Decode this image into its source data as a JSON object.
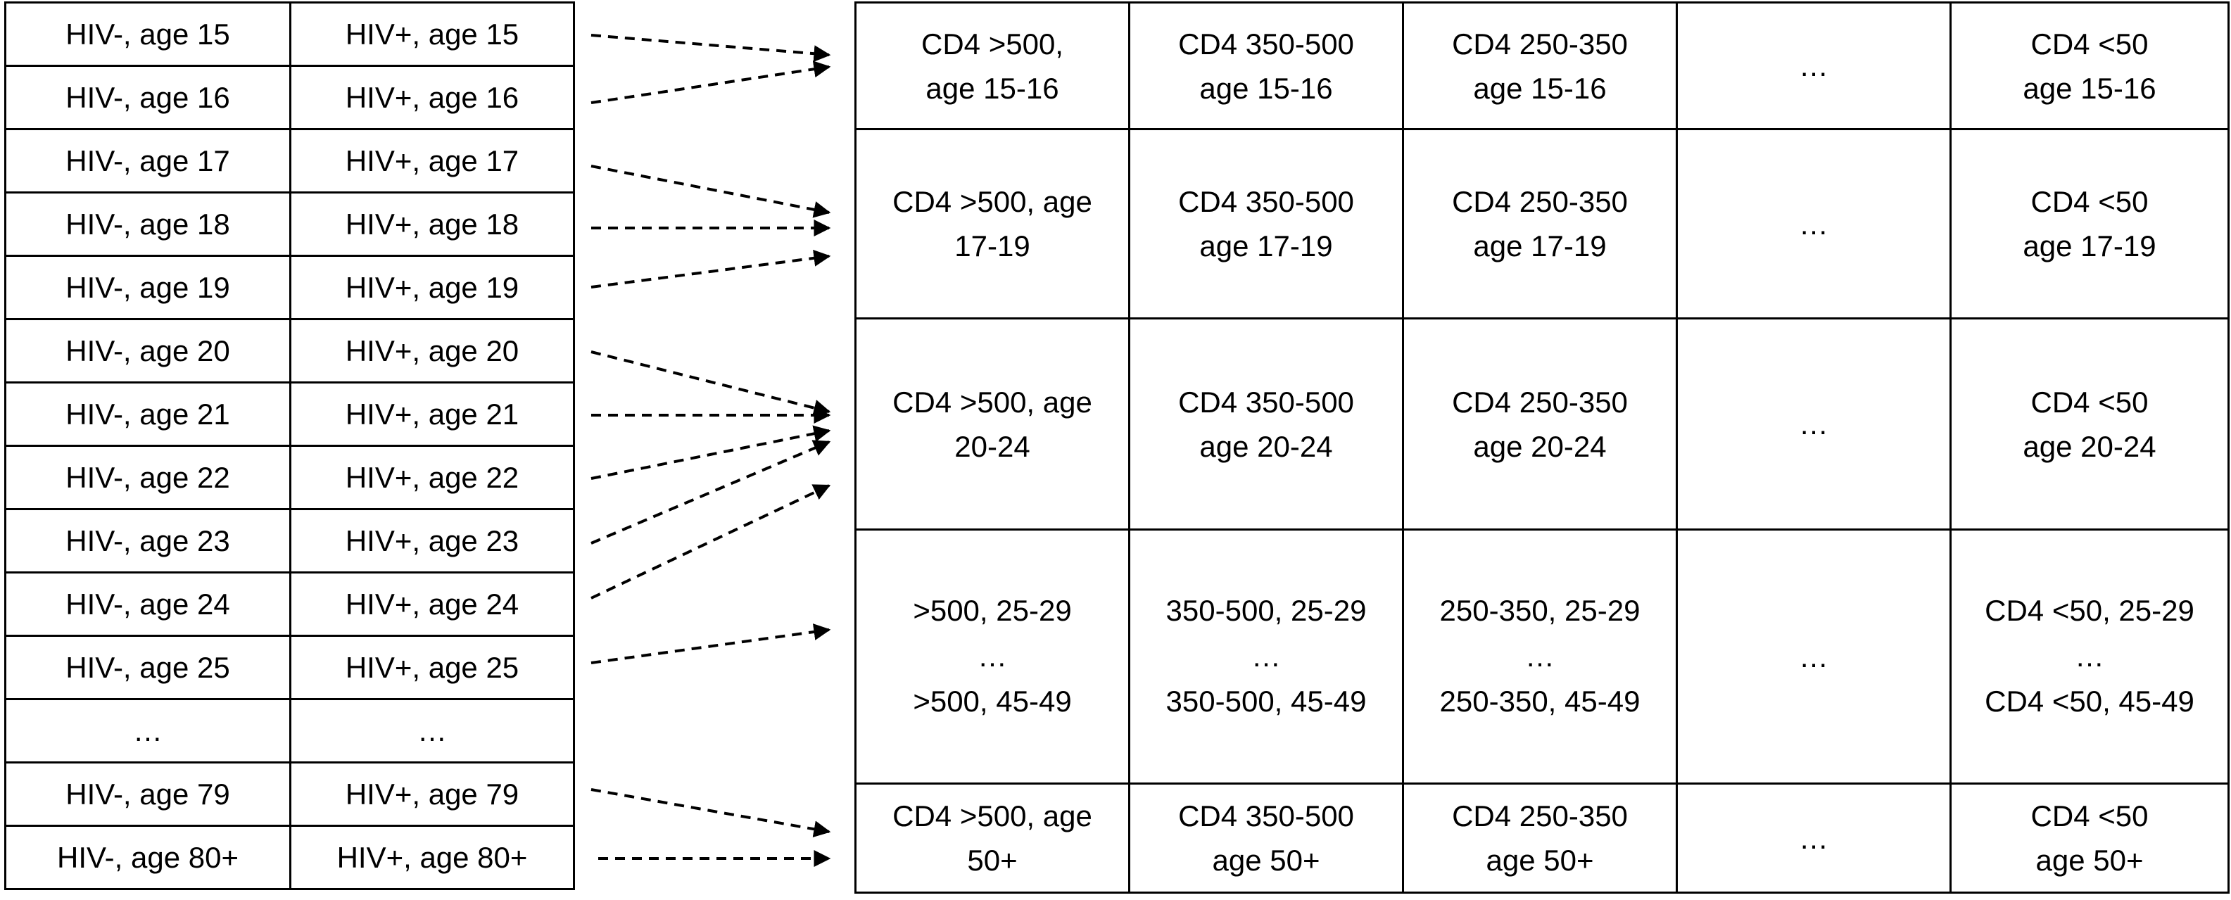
{
  "left_table": {
    "rows": [
      {
        "hiv_neg": "HIV-, age 15",
        "hiv_pos": "HIV+, age 15"
      },
      {
        "hiv_neg": "HIV-, age 16",
        "hiv_pos": "HIV+, age 16"
      },
      {
        "hiv_neg": "HIV-, age 17",
        "hiv_pos": "HIV+, age 17"
      },
      {
        "hiv_neg": "HIV-, age 18",
        "hiv_pos": "HIV+, age 18"
      },
      {
        "hiv_neg": "HIV-, age 19",
        "hiv_pos": "HIV+, age 19"
      },
      {
        "hiv_neg": "HIV-, age 20",
        "hiv_pos": "HIV+, age 20"
      },
      {
        "hiv_neg": "HIV-, age 21",
        "hiv_pos": "HIV+, age 21"
      },
      {
        "hiv_neg": "HIV-, age 22",
        "hiv_pos": "HIV+, age 22"
      },
      {
        "hiv_neg": "HIV-, age 23",
        "hiv_pos": "HIV+, age 23"
      },
      {
        "hiv_neg": "HIV-, age 24",
        "hiv_pos": "HIV+, age 24"
      },
      {
        "hiv_neg": "HIV-, age 25",
        "hiv_pos": "HIV+, age 25"
      },
      {
        "hiv_neg": "…",
        "hiv_pos": "…"
      },
      {
        "hiv_neg": "HIV-, age 79",
        "hiv_pos": "HIV+, age 79"
      },
      {
        "hiv_neg": "HIV-, age 80+",
        "hiv_pos": "HIV+, age 80+"
      }
    ]
  },
  "right_table": {
    "rows": [
      {
        "cells": [
          [
            "CD4 >500,",
            "age 15-16"
          ],
          [
            "CD4 350-500",
            "age 15-16"
          ],
          [
            "CD4 250-350",
            "age 15-16"
          ],
          [
            "…"
          ],
          [
            "CD4 <50",
            "age 15-16"
          ]
        ]
      },
      {
        "cells": [
          [
            "CD4 >500, age",
            "17-19"
          ],
          [
            "CD4 350-500",
            "age 17-19"
          ],
          [
            "CD4 250-350",
            "age 17-19"
          ],
          [
            "…"
          ],
          [
            "CD4 <50",
            "age 17-19"
          ]
        ]
      },
      {
        "cells": [
          [
            "CD4 >500, age",
            "20-24"
          ],
          [
            "CD4 350-500",
            "age 20-24"
          ],
          [
            "CD4 250-350",
            "age 20-24"
          ],
          [
            "…"
          ],
          [
            "CD4 <50",
            "age 20-24"
          ]
        ]
      },
      {
        "cells": [
          [
            ">500, 25-29",
            "…",
            ">500, 45-49"
          ],
          [
            "350-500, 25-29",
            "…",
            "350-500, 45-49"
          ],
          [
            "250-350, 25-29",
            "…",
            "250-350, 45-49"
          ],
          [
            "…"
          ],
          [
            "CD4 <50, 25-29",
            "…",
            "CD4 <50, 45-49"
          ]
        ]
      },
      {
        "cells": [
          [
            "CD4 >500, age",
            "50+"
          ],
          [
            "CD4 350-500",
            "age 50+"
          ],
          [
            "CD4 250-350",
            "age 50+"
          ],
          [
            "…"
          ],
          [
            "CD4 <50",
            "age 50+"
          ]
        ]
      }
    ]
  }
}
